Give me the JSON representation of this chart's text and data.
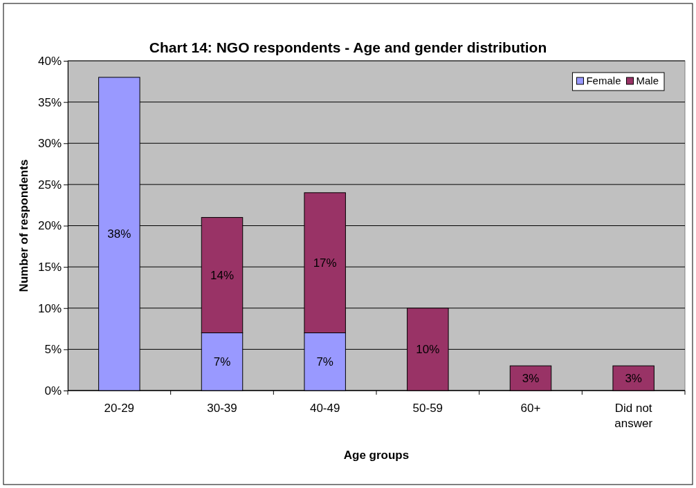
{
  "chart_data": {
    "type": "bar",
    "title": "Chart 14: NGO respondents - Age and gender distribution",
    "xlabel": "Age groups",
    "ylabel": "Number of respondents",
    "categories": [
      "20-29",
      "30-39",
      "40-49",
      "50-59",
      "60+",
      "Did not answer"
    ],
    "stacked": true,
    "series": [
      {
        "name": "Female",
        "color": "#9999ff",
        "values": [
          38,
          7,
          7,
          null,
          null,
          null
        ],
        "value_labels": [
          "38%",
          "7%",
          "7%",
          null,
          null,
          null
        ]
      },
      {
        "name": "Male",
        "color": "#993366",
        "values": [
          null,
          14,
          17,
          10,
          3,
          3
        ],
        "value_labels": [
          null,
          "14%",
          "17%",
          "10%",
          "3%",
          "3%"
        ]
      }
    ],
    "ylim": [
      0,
      40
    ],
    "yticks": [
      {
        "value": 0,
        "label": "0%"
      },
      {
        "value": 5,
        "label": "5%"
      },
      {
        "value": 10,
        "label": "10%"
      },
      {
        "value": 15,
        "label": "15%"
      },
      {
        "value": 20,
        "label": "20%"
      },
      {
        "value": 25,
        "label": "25%"
      },
      {
        "value": 30,
        "label": "30%"
      },
      {
        "value": 35,
        "label": "35%"
      },
      {
        "value": 40,
        "label": "40%"
      }
    ],
    "grid": "y",
    "legend": "top right"
  }
}
